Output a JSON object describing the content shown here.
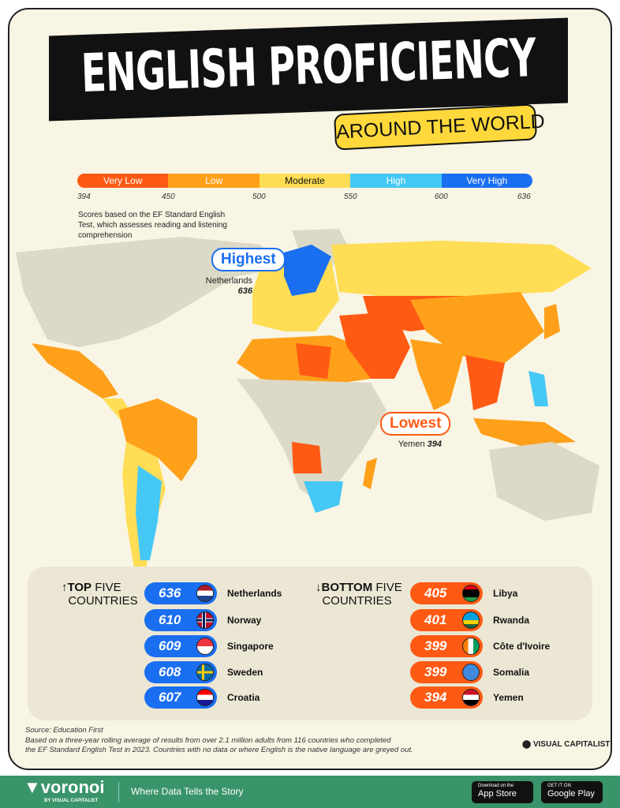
{
  "title": "ENGLISH PROFICIENCY",
  "subtitle": "AROUND THE WORLD",
  "legend": {
    "bands": [
      {
        "label": "Very Low",
        "color": "#ff5a14"
      },
      {
        "label": "Low",
        "color": "#ffa01a"
      },
      {
        "label": "Moderate",
        "color": "#ffdd55"
      },
      {
        "label": "High",
        "color": "#45c8f5"
      },
      {
        "label": "Very High",
        "color": "#1a6ef0"
      }
    ],
    "ticks": [
      "394",
      "450",
      "500",
      "550",
      "600",
      "636"
    ],
    "note": "Scores based on the EF Standard English Test, which assesses reading and listening comprehension"
  },
  "highest": {
    "label": "Highest",
    "country": "Netherlands",
    "score": "636"
  },
  "lowest": {
    "label": "Lowest",
    "country": "Yemen",
    "score": "394"
  },
  "top": {
    "heading_bold": "TOP",
    "heading_rest": "FIVE",
    "heading_line2": "COUNTRIES",
    "items": [
      {
        "score": "636",
        "country": "Netherlands",
        "flag": "netherlands"
      },
      {
        "score": "610",
        "country": "Norway",
        "flag": "norway"
      },
      {
        "score": "609",
        "country": "Singapore",
        "flag": "singapore"
      },
      {
        "score": "608",
        "country": "Sweden",
        "flag": "sweden"
      },
      {
        "score": "607",
        "country": "Croatia",
        "flag": "croatia"
      }
    ]
  },
  "bottom": {
    "heading_bold": "BOTTOM",
    "heading_rest": "FIVE",
    "heading_line2": "COUNTRIES",
    "items": [
      {
        "score": "405",
        "country": "Libya",
        "flag": "libya"
      },
      {
        "score": "401",
        "country": "Rwanda",
        "flag": "rwanda"
      },
      {
        "score": "399",
        "country": "Côte d'Ivoire",
        "flag": "cote-divoire"
      },
      {
        "score": "399",
        "country": "Somalia",
        "flag": "somalia"
      },
      {
        "score": "394",
        "country": "Yemen",
        "flag": "yemen"
      }
    ]
  },
  "source": "Source: Education First",
  "footnote1": "Based on a three-year rolling average of results from over 2.1 million adults from 116 countries who completed",
  "footnote2": "the EF Standard English Test in 2023. Countries with no data or where English is the native language are greyed out.",
  "brand": "VISUAL CAPITALIST",
  "footer": {
    "logo": "voronoi",
    "logo_sub": "BY VISUAL CAPITALIST",
    "tagline": "Where Data Tells the Story",
    "appstore_small": "Download on the",
    "appstore": "App Store",
    "gplay_small": "GET IT ON",
    "gplay": "Google Play"
  },
  "colors": {
    "grey": "#dcd9c6",
    "very_high": "#1a6ef0",
    "very_low": "#ff5a14"
  }
}
